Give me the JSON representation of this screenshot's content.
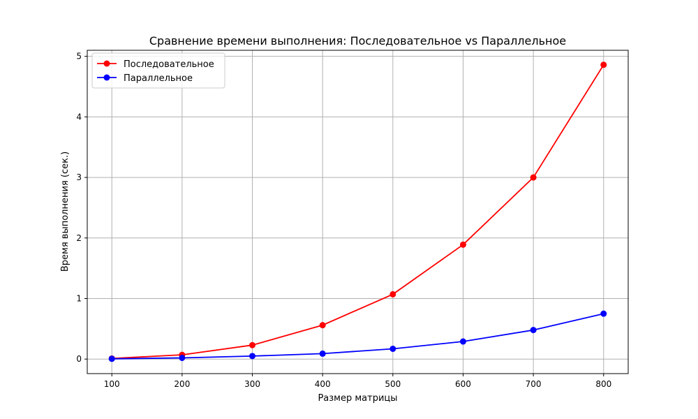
{
  "chart_data": {
    "type": "line",
    "title": "Сравнение времени выполнения: Последовательное vs Параллельное",
    "xlabel": "Размер матрицы",
    "ylabel": "Время выполнения (сек.)",
    "x": [
      100,
      200,
      300,
      400,
      500,
      600,
      700,
      800
    ],
    "xlim": [
      65,
      835
    ],
    "ylim": [
      -0.24,
      5.1
    ],
    "xticks": [
      100,
      200,
      300,
      400,
      500,
      600,
      700,
      800
    ],
    "yticks": [
      0,
      1,
      2,
      3,
      4,
      5
    ],
    "grid": true,
    "legend_position": "top-left",
    "series": [
      {
        "name": "Последовательное",
        "color": "#ff0000",
        "marker": "circle",
        "values": [
          0.01,
          0.07,
          0.23,
          0.56,
          1.07,
          1.89,
          3.0,
          4.86
        ]
      },
      {
        "name": "Параллельное",
        "color": "#0000ff",
        "marker": "circle",
        "values": [
          0.005,
          0.02,
          0.05,
          0.09,
          0.17,
          0.29,
          0.48,
          0.75
        ]
      }
    ]
  }
}
